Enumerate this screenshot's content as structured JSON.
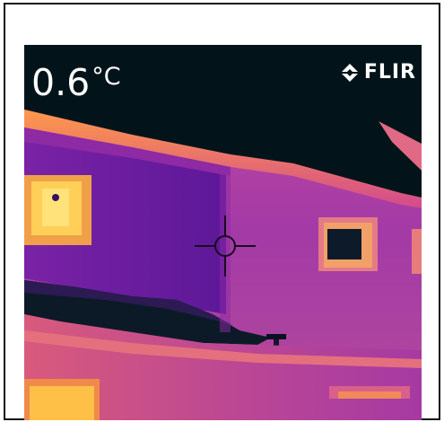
{
  "camera": {
    "temperature_value": "0.6",
    "temperature_unit": "°C",
    "brand": "FLIR"
  },
  "icons": {
    "brand_mark": "flir-logo-icon",
    "spot_meter": "crosshair-reticle-icon"
  },
  "colors": {
    "sky": "#02141a",
    "cold_purple": "#2a0c54",
    "mid_purple": "#7a1fa0",
    "magenta": "#b43aa6",
    "warm_orange": "#f09a3e",
    "hot_yellow": "#ffd24a"
  }
}
